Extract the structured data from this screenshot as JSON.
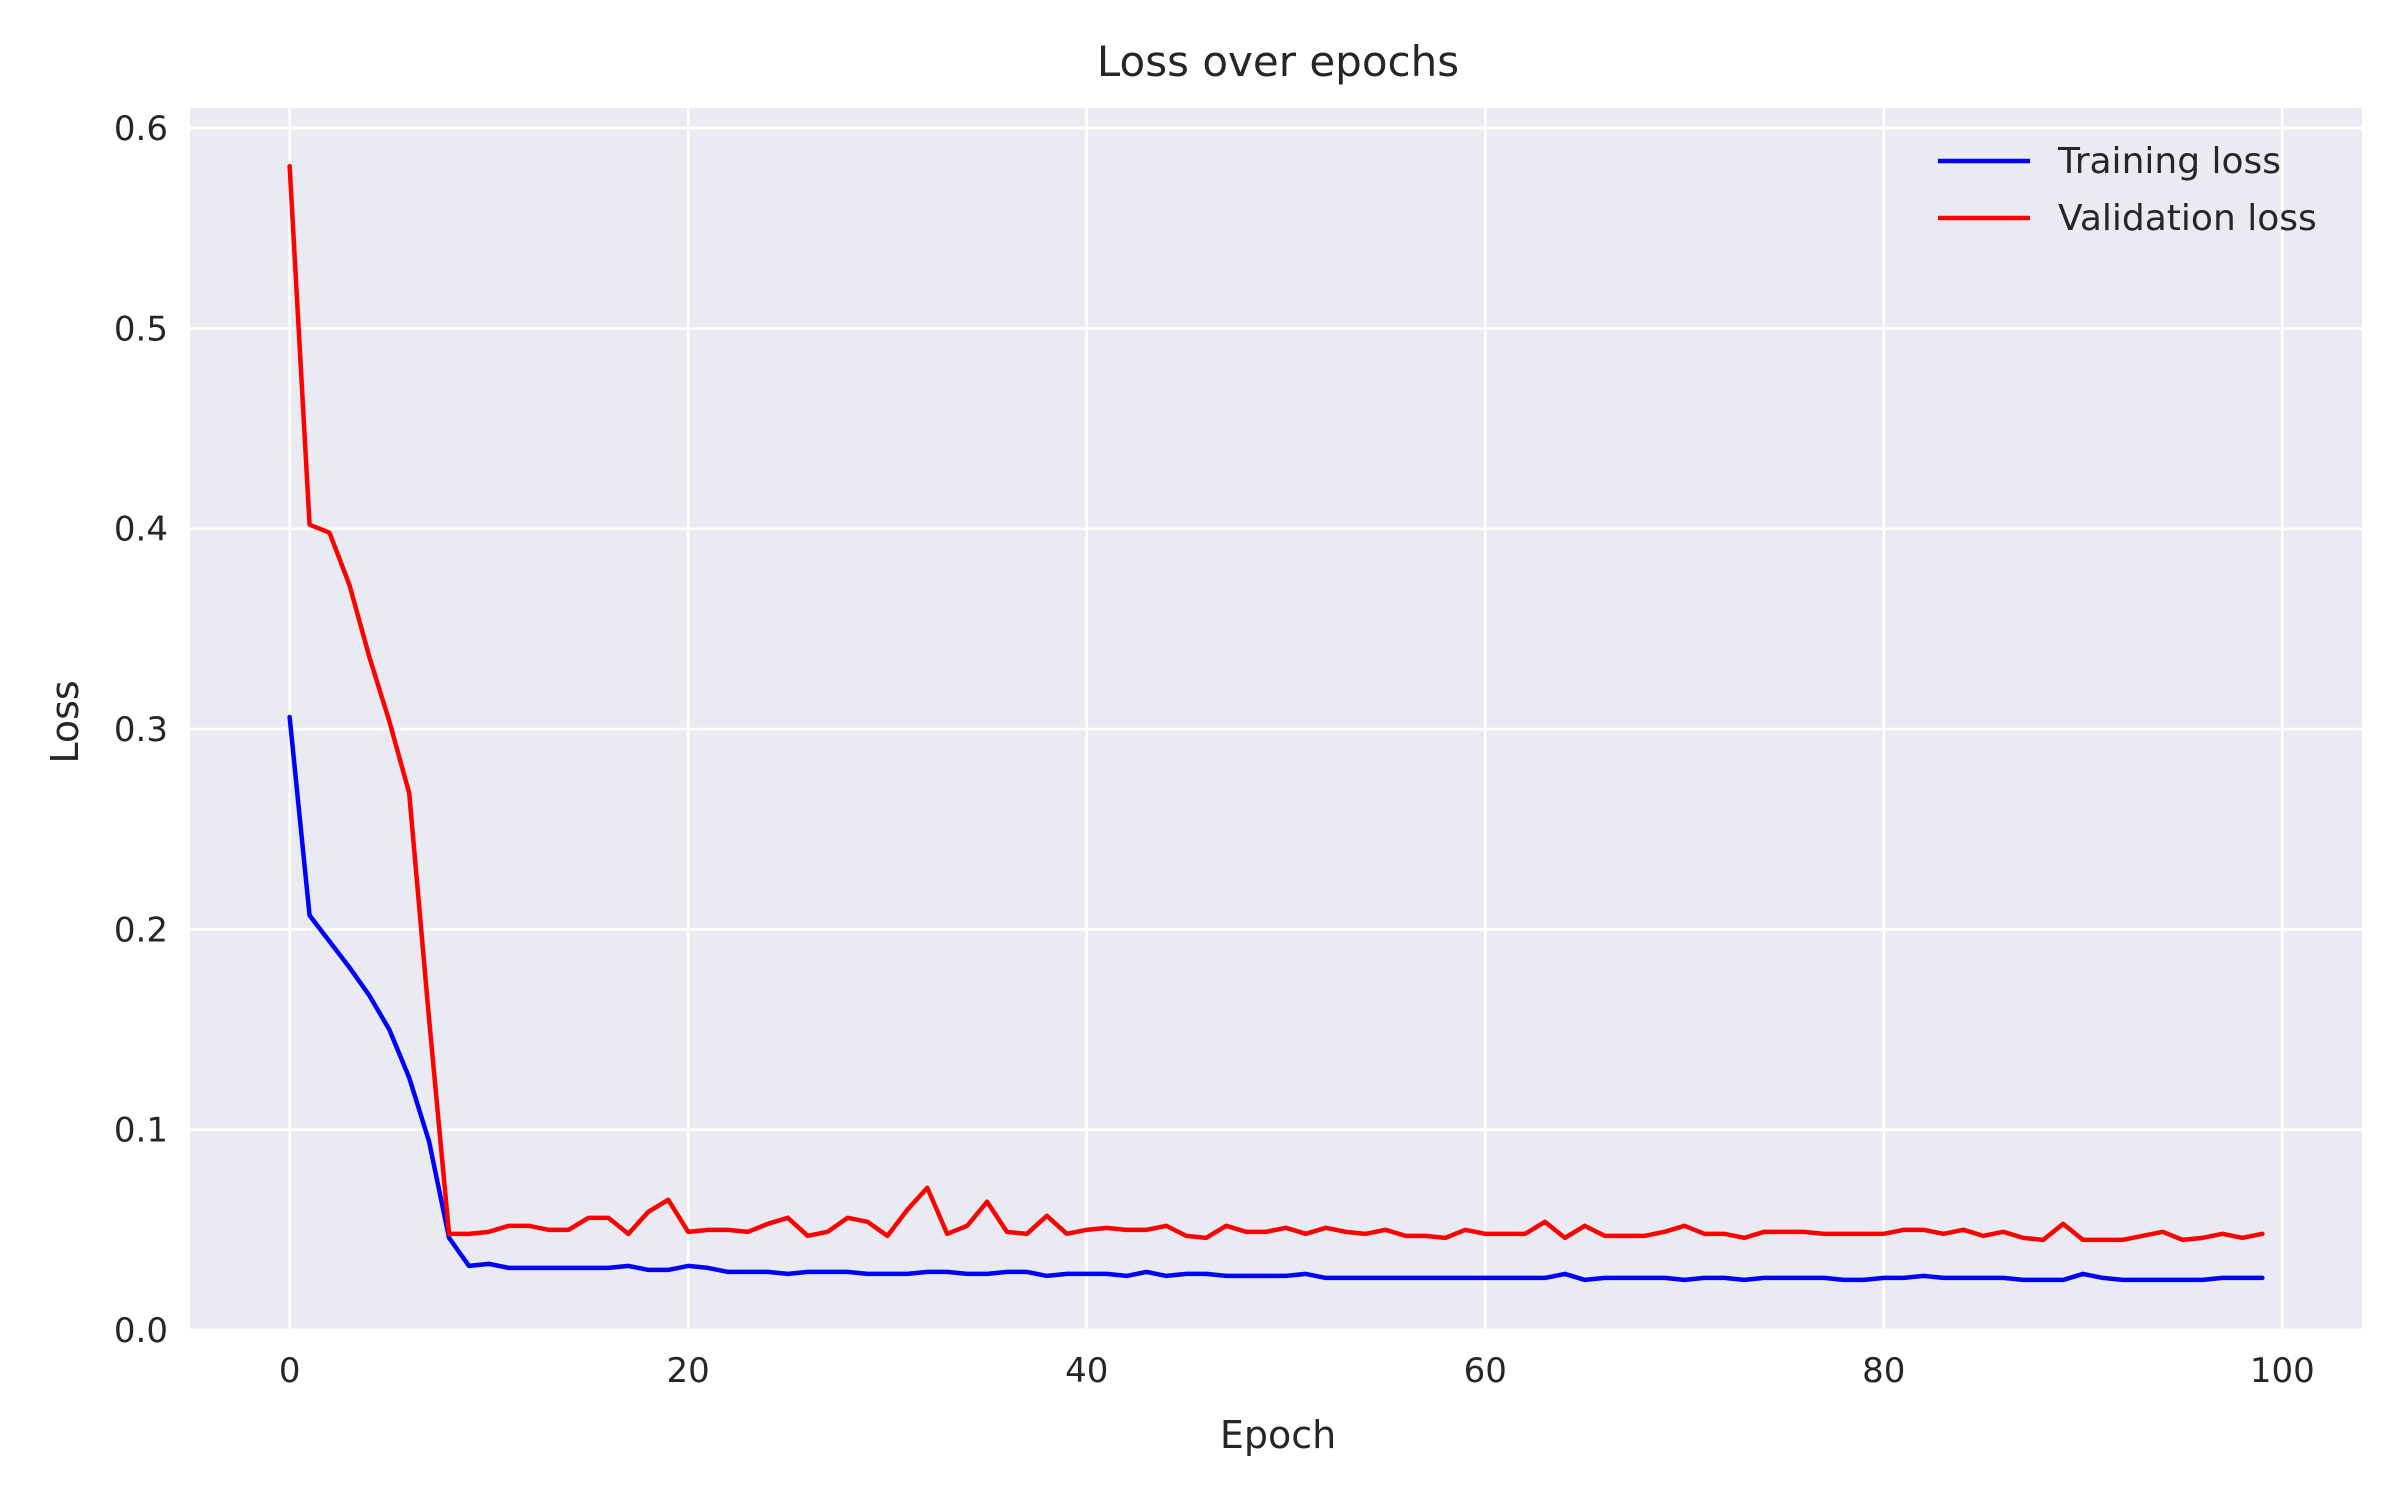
{
  "chart_data": {
    "type": "line",
    "title": "Loss over epochs",
    "xlabel": "Epoch",
    "ylabel": "Loss",
    "xlim": [
      -5,
      104
    ],
    "ylim": [
      0.0,
      0.61
    ],
    "xticks": [
      0,
      20,
      40,
      60,
      80,
      100
    ],
    "yticks": [
      0.0,
      0.1,
      0.2,
      0.3,
      0.4,
      0.5,
      0.6
    ],
    "ytick_labels": [
      "0.0",
      "0.1",
      "0.2",
      "0.3",
      "0.4",
      "0.5",
      "0.6"
    ],
    "grid": true,
    "legend_position": "top-right",
    "colors": {
      "background": "#eaeaf2",
      "grid": "#ffffff"
    },
    "series": [
      {
        "name": "Training loss",
        "color": "#0000ff",
        "values": [
          0.306,
          0.207,
          0.194,
          0.181,
          0.167,
          0.15,
          0.126,
          0.094,
          0.046,
          0.032,
          0.033,
          0.031,
          0.031,
          0.031,
          0.031,
          0.031,
          0.031,
          0.032,
          0.03,
          0.03,
          0.032,
          0.031,
          0.029,
          0.029,
          0.029,
          0.028,
          0.029,
          0.029,
          0.029,
          0.028,
          0.028,
          0.028,
          0.029,
          0.029,
          0.028,
          0.028,
          0.029,
          0.029,
          0.027,
          0.028,
          0.028,
          0.028,
          0.027,
          0.029,
          0.027,
          0.028,
          0.028,
          0.027,
          0.027,
          0.027,
          0.027,
          0.028,
          0.026,
          0.026,
          0.026,
          0.026,
          0.026,
          0.026,
          0.026,
          0.026,
          0.026,
          0.026,
          0.026,
          0.026,
          0.028,
          0.025,
          0.026,
          0.026,
          0.026,
          0.026,
          0.025,
          0.026,
          0.026,
          0.025,
          0.026,
          0.026,
          0.026,
          0.026,
          0.025,
          0.025,
          0.026,
          0.026,
          0.027,
          0.026,
          0.026,
          0.026,
          0.026,
          0.025,
          0.025,
          0.025,
          0.028,
          0.026,
          0.025,
          0.025,
          0.025,
          0.025,
          0.025,
          0.026,
          0.026,
          0.026
        ]
      },
      {
        "name": "Validation loss",
        "color": "#ff0000",
        "values": [
          0.581,
          0.402,
          0.398,
          0.372,
          0.336,
          0.304,
          0.268,
          0.155,
          0.048,
          0.048,
          0.049,
          0.052,
          0.052,
          0.05,
          0.05,
          0.056,
          0.056,
          0.048,
          0.059,
          0.065,
          0.049,
          0.05,
          0.05,
          0.049,
          0.053,
          0.056,
          0.047,
          0.049,
          0.056,
          0.054,
          0.047,
          0.06,
          0.071,
          0.048,
          0.052,
          0.064,
          0.049,
          0.048,
          0.057,
          0.048,
          0.05,
          0.051,
          0.05,
          0.05,
          0.052,
          0.047,
          0.046,
          0.052,
          0.049,
          0.049,
          0.051,
          0.048,
          0.051,
          0.049,
          0.048,
          0.05,
          0.047,
          0.047,
          0.046,
          0.05,
          0.048,
          0.048,
          0.048,
          0.054,
          0.046,
          0.052,
          0.047,
          0.047,
          0.047,
          0.049,
          0.052,
          0.048,
          0.048,
          0.046,
          0.049,
          0.049,
          0.049,
          0.048,
          0.048,
          0.048,
          0.048,
          0.05,
          0.05,
          0.048,
          0.05,
          0.047,
          0.049,
          0.046,
          0.045,
          0.053,
          0.045,
          0.045,
          0.045,
          0.047,
          0.049,
          0.045,
          0.046,
          0.048,
          0.046,
          0.048
        ]
      }
    ]
  }
}
